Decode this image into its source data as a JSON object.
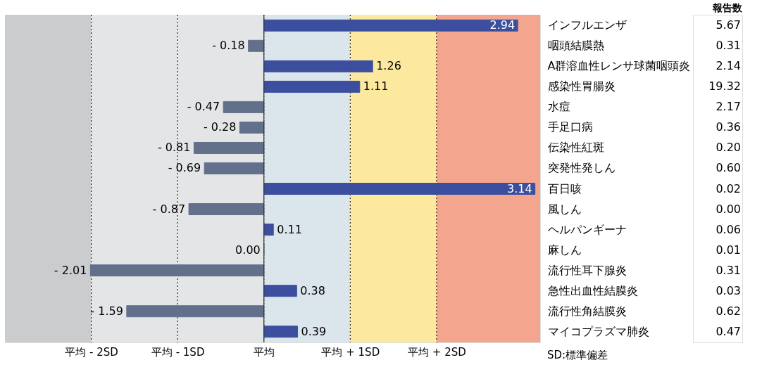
{
  "chart_data": [
    {
      "type": "bar",
      "orientation": "horizontal",
      "categories": [
        "インフルエンザ",
        "咽頭結膜熱",
        "A群溶血性レンサ球菌咽頭炎",
        "感染性胃腸炎",
        "水痘",
        "手足口病",
        "伝染性紅斑",
        "突発性発しん",
        "百日咳",
        "風しん",
        "ヘルパンギーナ",
        "麻しん",
        "流行性耳下腺炎",
        "急性出血性結膜炎",
        "流行性角結膜炎",
        "マイコプラズマ肺炎"
      ],
      "values": [
        2.94,
        -0.18,
        1.26,
        1.11,
        -0.47,
        -0.28,
        -0.81,
        -0.69,
        3.14,
        -0.87,
        0.11,
        0.0,
        -2.01,
        0.38,
        -1.59,
        0.39
      ],
      "value_labels": [
        "2.94",
        "- 0.18",
        "1.26",
        "1.11",
        "- 0.47",
        "- 0.28",
        "- 0.81",
        "- 0.69",
        "3.14",
        "- 0.87",
        "0.11",
        "0.00",
        "- 2.01",
        "0.38",
        "- 1.59",
        "0.39"
      ],
      "colors": [
        "#3b4f9e",
        "#63708c",
        "#3b4f9e",
        "#3b4f9e",
        "#63708c",
        "#63708c",
        "#63708c",
        "#63708c",
        "#3b4f9e",
        "#63708c",
        "#3b4f9e",
        "#63708c",
        "#63708c",
        "#3b4f9e",
        "#63708c",
        "#3b4f9e"
      ],
      "xlim": [
        -3,
        3.2
      ],
      "xticks": [
        {
          "value": -2,
          "label": "平均 - 2SD"
        },
        {
          "value": -1,
          "label": "平均 - 1SD"
        },
        {
          "value": 0,
          "label": "平均"
        },
        {
          "value": 1,
          "label": "平均 + 1SD"
        },
        {
          "value": 2,
          "label": "平均 + 2SD"
        }
      ],
      "grid": "x",
      "ref_lines": [
        {
          "axis": "x",
          "value": 0,
          "color": "#333333"
        }
      ],
      "bands": [
        {
          "axis": "x",
          "from": -3,
          "to": -2,
          "color": "#cbcccd"
        },
        {
          "axis": "x",
          "from": -2,
          "to": 0,
          "color": "#e4e5e6"
        },
        {
          "axis": "x",
          "from": 0,
          "to": 1,
          "color": "#dbe5ec"
        },
        {
          "axis": "x",
          "from": 1,
          "to": 2,
          "color": "#fde8a0"
        },
        {
          "axis": "x",
          "from": 2,
          "to": 3.2,
          "color": "#f4a58e"
        }
      ],
      "annotations": [
        "SD:標準偏差"
      ]
    },
    {
      "type": "other",
      "title": "報告数",
      "values": [
        5.67,
        0.31,
        2.14,
        19.32,
        2.17,
        0.36,
        0.2,
        0.6,
        0.02,
        0.0,
        0.06,
        0.01,
        0.31,
        0.03,
        0.62,
        0.47
      ],
      "value_labels": [
        "5.67",
        "0.31",
        "2.14",
        "19.32",
        "2.17",
        "0.36",
        "0.20",
        "0.60",
        "0.02",
        "0.00",
        "0.06",
        "0.01",
        "0.31",
        "0.03",
        "0.62",
        "0.47"
      ]
    }
  ]
}
